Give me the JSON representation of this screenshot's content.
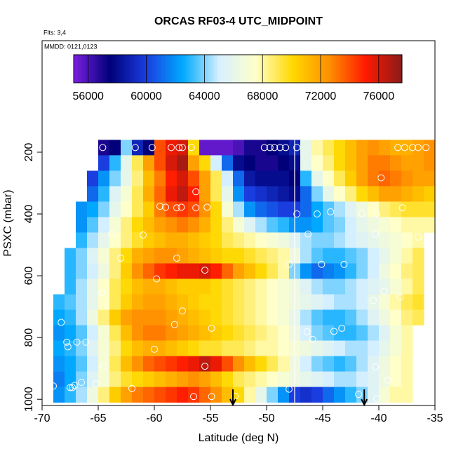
{
  "chart_data": {
    "type": "heatmap",
    "title": "ORCAS RF03-4 UTC_MIDPOINT",
    "subtitle": "Flts: 3,4",
    "annotation": "MMDD: 0121,0123",
    "x_label": "Latitude (deg N)",
    "y_label": "PSXC (mbar)",
    "xlim": [
      -70,
      -35
    ],
    "xticks": [
      -70,
      -65,
      -60,
      -55,
      -50,
      -45,
      -40,
      -35
    ],
    "ylim": [
      1020,
      -161
    ],
    "yticks": [
      200,
      400,
      600,
      800,
      1000
    ],
    "x": [
      -69.5,
      -68.5,
      -67.5,
      -66.5,
      -65.5,
      -64.5,
      -63.5,
      -62.5,
      -61.5,
      -60.5,
      -59.5,
      -58.5,
      -57.5,
      -56.5,
      -55.5,
      -54.5,
      -53.5,
      -52.5,
      -51.5,
      -50.5,
      -49.5,
      -48.5,
      -47.5,
      -46.5,
      -45.5,
      -44.5,
      -43.5,
      -42.5,
      -41.5,
      -40.5,
      -39.5,
      -38.5,
      -37.5,
      -36.5,
      -35.5
    ],
    "y": [
      185,
      235,
      285,
      335,
      385,
      435,
      485,
      535,
      585,
      635,
      685,
      735,
      785,
      835,
      885,
      935,
      985
    ],
    "z": [
      [
        null,
        null,
        null,
        null,
        null,
        57000,
        57500,
        64000,
        59000,
        57500,
        74000,
        75500,
        76000,
        70000,
        55500,
        55500,
        55500,
        56000,
        57000,
        57000,
        57500,
        58000,
        59000,
        66000,
        68000,
        69000,
        70000,
        71000,
        72000,
        72500,
        72000,
        71500,
        71500,
        72000,
        72500
      ],
      [
        null,
        null,
        null,
        null,
        null,
        60000,
        63000,
        66000,
        69000,
        72000,
        74000,
        76000,
        77000,
        72000,
        70000,
        65000,
        61000,
        58000,
        57500,
        57000,
        57000,
        57500,
        58000,
        66000,
        67500,
        68500,
        70000,
        71000,
        72000,
        73000,
        73000,
        72500,
        72000,
        72000,
        72500
      ],
      [
        null,
        null,
        null,
        null,
        60000,
        62000,
        64000,
        66000,
        68500,
        71000,
        73000,
        75000,
        76000,
        74000,
        72000,
        69000,
        65000,
        61000,
        58500,
        58000,
        58000,
        58000,
        57500,
        63000,
        66000,
        67500,
        69000,
        70500,
        72000,
        73000,
        73500,
        73000,
        72500,
        72000,
        72000
      ],
      [
        null,
        null,
        null,
        null,
        61000,
        63000,
        65500,
        67000,
        69000,
        71500,
        73500,
        75500,
        76500,
        75000,
        72000,
        69000,
        66000,
        62000,
        60000,
        59500,
        59000,
        58500,
        58000,
        61000,
        64000,
        66000,
        67500,
        68500,
        70000,
        71000,
        72000,
        72000,
        71500,
        71000,
        70500
      ],
      [
        null,
        null,
        null,
        62000,
        62500,
        64000,
        66000,
        67500,
        69000,
        70500,
        73000,
        74000,
        74500,
        74000,
        72500,
        70000,
        67000,
        64500,
        62000,
        61000,
        60500,
        60000,
        60000,
        61000,
        62500,
        63500,
        64500,
        65500,
        66500,
        67500,
        68500,
        69000,
        69500,
        69500,
        69500
      ],
      [
        null,
        null,
        null,
        62000,
        63500,
        65000,
        67000,
        68500,
        70000,
        71000,
        72000,
        72500,
        73000,
        72500,
        71500,
        70000,
        68500,
        67000,
        65500,
        64500,
        63500,
        63000,
        62000,
        62000,
        62500,
        63500,
        64000,
        65000,
        66000,
        66500,
        67000,
        67500,
        68000,
        68000,
        68000
      ],
      [
        null,
        null,
        null,
        63000,
        64500,
        66000,
        67500,
        68500,
        69500,
        70500,
        71000,
        71500,
        71500,
        71000,
        70500,
        70000,
        69000,
        68500,
        68000,
        67500,
        67000,
        66500,
        65500,
        64500,
        64000,
        64000,
        64500,
        65000,
        65500,
        66000,
        66500,
        67000,
        67500,
        68000,
        null
      ],
      [
        null,
        null,
        63000,
        64000,
        65500,
        67000,
        68500,
        70000,
        71500,
        72000,
        72500,
        72500,
        72000,
        71500,
        71000,
        70500,
        70000,
        70000,
        69500,
        69000,
        68500,
        68000,
        66500,
        64500,
        63500,
        63000,
        63000,
        63500,
        64000,
        65000,
        66000,
        67000,
        68000,
        69000,
        null
      ],
      [
        null,
        null,
        63000,
        64000,
        65000,
        66500,
        68500,
        70500,
        72500,
        73500,
        74500,
        75000,
        75500,
        75500,
        76000,
        75000,
        73500,
        72000,
        71000,
        70000,
        69000,
        68000,
        64000,
        62000,
        61000,
        61500,
        62000,
        63000,
        64000,
        65000,
        66500,
        67500,
        68500,
        69000,
        null
      ],
      [
        null,
        null,
        63000,
        64500,
        66000,
        67500,
        69000,
        70000,
        71000,
        71500,
        71500,
        71000,
        70500,
        70500,
        70500,
        70000,
        69500,
        69000,
        68500,
        68000,
        67500,
        67000,
        66500,
        65500,
        64500,
        64000,
        64000,
        64500,
        65000,
        65500,
        66000,
        67000,
        68000,
        69000,
        null
      ],
      [
        null,
        63000,
        63500,
        64500,
        66000,
        67500,
        69000,
        70500,
        71500,
        72000,
        72000,
        71500,
        71000,
        70500,
        70000,
        70000,
        69500,
        69000,
        68500,
        68000,
        67500,
        67000,
        66500,
        66000,
        65500,
        65000,
        64500,
        64500,
        65000,
        66000,
        67000,
        68000,
        69000,
        69500,
        null
      ],
      [
        null,
        62500,
        63000,
        64500,
        66500,
        68500,
        70500,
        72000,
        72500,
        72500,
        72500,
        72000,
        71500,
        71000,
        70500,
        70000,
        69500,
        69000,
        68500,
        68000,
        67500,
        67000,
        66000,
        64500,
        63500,
        63000,
        63000,
        63500,
        64500,
        65500,
        66500,
        67500,
        68500,
        69000,
        null
      ],
      [
        null,
        62000,
        62500,
        63500,
        65000,
        67000,
        69000,
        71000,
        72500,
        73000,
        73000,
        72500,
        72000,
        71500,
        71000,
        70500,
        70000,
        69500,
        69000,
        68500,
        68000,
        67500,
        66500,
        65000,
        64000,
        63500,
        63000,
        63000,
        63500,
        64500,
        65500,
        67000,
        68000,
        null,
        null
      ],
      [
        null,
        62500,
        63000,
        64000,
        65500,
        67000,
        68500,
        70000,
        71000,
        71500,
        71500,
        71000,
        70500,
        70000,
        69500,
        69500,
        69000,
        69000,
        68500,
        68000,
        68000,
        67500,
        67000,
        66500,
        66000,
        65500,
        65000,
        64500,
        64500,
        65000,
        66000,
        67000,
        68000,
        null,
        null
      ],
      [
        null,
        62000,
        62500,
        63500,
        65000,
        67000,
        69000,
        71000,
        72500,
        73500,
        74000,
        74500,
        75000,
        75500,
        76500,
        75500,
        74000,
        72500,
        71000,
        70000,
        69000,
        68000,
        66500,
        65000,
        64000,
        63500,
        63000,
        63500,
        64500,
        65500,
        66500,
        67500,
        68000,
        null,
        null
      ],
      [
        null,
        61500,
        62500,
        64000,
        65500,
        67000,
        68500,
        69500,
        70000,
        70500,
        71000,
        71500,
        72000,
        72500,
        72000,
        71000,
        70000,
        69000,
        68500,
        68000,
        67500,
        67000,
        66500,
        66000,
        65500,
        65000,
        64500,
        64500,
        65000,
        65500,
        66500,
        67500,
        68000,
        null,
        null
      ],
      [
        null,
        62000,
        63000,
        64500,
        66500,
        68500,
        70500,
        72000,
        73000,
        73500,
        74000,
        74500,
        75000,
        74500,
        73500,
        72500,
        71000,
        70000,
        68000,
        66000,
        64000,
        62000,
        60000,
        59500,
        60000,
        61000,
        62000,
        63000,
        64000,
        65500,
        67000,
        68000,
        68000,
        null,
        null
      ]
    ],
    "row_height": 50,
    "zlim": [
      55000,
      77600
    ],
    "zticks": [
      56000,
      60000,
      64000,
      68000,
      72000,
      76000
    ],
    "colorscale": [
      "#7a1fe0",
      "#00007a",
      "#1a3ee0",
      "#00aaff",
      "#d8f0ff",
      "#ffffc8",
      "#ffd800",
      "#ff9000",
      "#ff1a00",
      "#8b1a1a"
    ],
    "points": {
      "x": [
        -64.6,
        -61.7,
        -60.2,
        -58.5,
        -57.8,
        -57.5,
        -56.7,
        -50.2,
        -49.7,
        -49.3,
        -48.8,
        -48.3,
        -47.3,
        -38.3,
        -37.7,
        -37,
        -36.5,
        -35.8,
        -39.8,
        -56.3,
        -59,
        -59.5,
        -58,
        -57.6,
        -56.3,
        -55.3,
        -47.3,
        -45.5,
        -44.3,
        -41.5,
        -40.2,
        -37.9,
        -40.3,
        -46.3,
        -63.8,
        -61,
        -36.5,
        -48,
        -45.1,
        -43.1,
        -55.5,
        -58,
        -63,
        -59.8,
        -64.7,
        -39.5,
        -38.1,
        -40.5,
        -57.5,
        -54.9,
        -58.2,
        -46.4,
        -45.9,
        -44,
        -43.3,
        -68.3,
        -67.8,
        -67.7,
        -66.9,
        -66.1,
        -60,
        -64.5,
        -55.5,
        -40.3,
        -66.5,
        -65.2,
        -67.1,
        -67.3,
        -67.5,
        -69,
        -62,
        -56.5,
        -52.8,
        -48,
        -41.8,
        -40.2,
        -39.2,
        -54.9
      ],
      "y": [
        185,
        185,
        185,
        185,
        185,
        185,
        185,
        185,
        185,
        185,
        185,
        185,
        185,
        185,
        185,
        185,
        185,
        185,
        283,
        328,
        378,
        375,
        380,
        378,
        380,
        378,
        400,
        400,
        393,
        398,
        400,
        380,
        465,
        465,
        465,
        468,
        475,
        563,
        563,
        563,
        582,
        543,
        543,
        610,
        655,
        650,
        669,
        680,
        714,
        770,
        758,
        781,
        806,
        780,
        770,
        751,
        815,
        830,
        815,
        815,
        838,
        895,
        893,
        895,
        945,
        950,
        955,
        962,
        962,
        957,
        965,
        991,
        990,
        967,
        984,
        998,
        938,
        991
      ]
    },
    "divider_x": -47.5,
    "arrows_x": [
      -53,
      -41.3
    ]
  }
}
